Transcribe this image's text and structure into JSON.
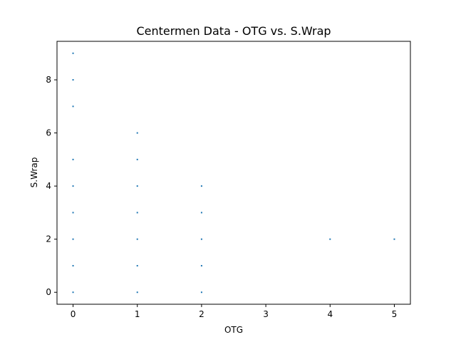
{
  "chart_data": {
    "type": "scatter",
    "title": "Centermen Data - OTG vs. S.Wrap",
    "xlabel": "OTG",
    "ylabel": "S.Wrap",
    "xlim": [
      -0.25,
      5.25
    ],
    "ylim": [
      -0.45,
      9.45
    ],
    "xticks": [
      0,
      1,
      2,
      3,
      4,
      5
    ],
    "yticks": [
      0,
      2,
      4,
      6,
      8
    ],
    "grid": false,
    "marker_color": "#1f77b4",
    "points": [
      {
        "x": 0,
        "y": 0
      },
      {
        "x": 0,
        "y": 1
      },
      {
        "x": 0,
        "y": 2
      },
      {
        "x": 0,
        "y": 3
      },
      {
        "x": 0,
        "y": 4
      },
      {
        "x": 0,
        "y": 5
      },
      {
        "x": 0,
        "y": 7
      },
      {
        "x": 0,
        "y": 8
      },
      {
        "x": 0,
        "y": 9
      },
      {
        "x": 1,
        "y": 0
      },
      {
        "x": 1,
        "y": 1
      },
      {
        "x": 1,
        "y": 2
      },
      {
        "x": 1,
        "y": 3
      },
      {
        "x": 1,
        "y": 4
      },
      {
        "x": 1,
        "y": 5
      },
      {
        "x": 1,
        "y": 6
      },
      {
        "x": 2,
        "y": 0
      },
      {
        "x": 2,
        "y": 1
      },
      {
        "x": 2,
        "y": 2
      },
      {
        "x": 2,
        "y": 3
      },
      {
        "x": 2,
        "y": 4
      },
      {
        "x": 4,
        "y": 2
      },
      {
        "x": 5,
        "y": 2
      }
    ]
  }
}
